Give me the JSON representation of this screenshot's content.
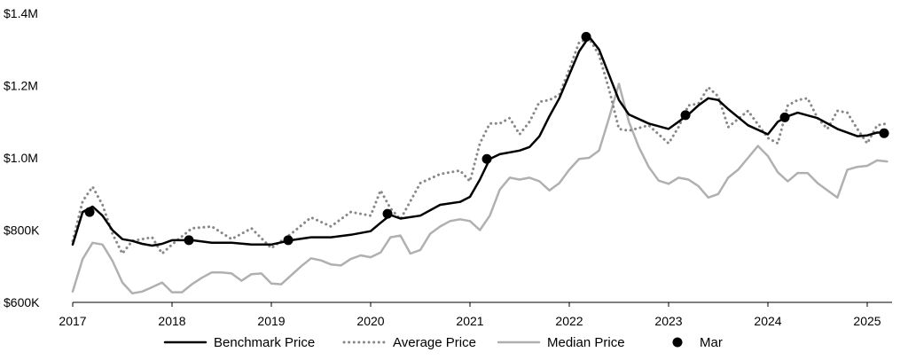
{
  "chart_data": {
    "type": "line",
    "title": "",
    "xlabel": "",
    "ylabel": "",
    "xlim": [
      2017.0,
      2025.25
    ],
    "ylim": [
      600000,
      1400000
    ],
    "grid": false,
    "legend_position": "bottom",
    "y_ticks": [
      {
        "value": 600000,
        "label": "$600K"
      },
      {
        "value": 800000,
        "label": "$800K"
      },
      {
        "value": 1000000,
        "label": "$1.0M"
      },
      {
        "value": 1200000,
        "label": "$1.2M"
      },
      {
        "value": 1400000,
        "label": "$1.4M"
      }
    ],
    "x_ticks": [
      {
        "value": 2017,
        "label": "2017"
      },
      {
        "value": 2018,
        "label": "2018"
      },
      {
        "value": 2019,
        "label": "2019"
      },
      {
        "value": 2020,
        "label": "2020"
      },
      {
        "value": 2021,
        "label": "2021"
      },
      {
        "value": 2022,
        "label": "2022"
      },
      {
        "value": 2023,
        "label": "2023"
      },
      {
        "value": 2024,
        "label": "2024"
      },
      {
        "value": 2025,
        "label": "2025"
      }
    ],
    "series": [
      {
        "name": "Benchmark Price",
        "color": "#000000",
        "style": "solid",
        "x": [
          2017.0,
          2017.1,
          2017.2,
          2017.3,
          2017.4,
          2017.5,
          2017.6,
          2017.7,
          2017.8,
          2017.9,
          2018.0,
          2018.2,
          2018.4,
          2018.6,
          2018.8,
          2019.0,
          2019.2,
          2019.4,
          2019.6,
          2019.8,
          2020.0,
          2020.1,
          2020.2,
          2020.3,
          2020.5,
          2020.7,
          2020.9,
          2021.0,
          2021.1,
          2021.2,
          2021.3,
          2021.5,
          2021.6,
          2021.7,
          2021.8,
          2021.9,
          2022.0,
          2022.1,
          2022.2,
          2022.3,
          2022.4,
          2022.5,
          2022.6,
          2022.8,
          2023.0,
          2023.1,
          2023.2,
          2023.3,
          2023.4,
          2023.5,
          2023.6,
          2023.8,
          2024.0,
          2024.1,
          2024.2,
          2024.3,
          2024.5,
          2024.7,
          2024.9,
          2025.0,
          2025.1,
          2025.2
        ],
        "y": [
          760000,
          850000,
          865000,
          840000,
          800000,
          775000,
          770000,
          762000,
          757000,
          762000,
          772000,
          772000,
          765000,
          765000,
          760000,
          760000,
          772000,
          780000,
          780000,
          787000,
          797000,
          820000,
          842000,
          832000,
          840000,
          870000,
          878000,
          892000,
          940000,
          997000,
          1010000,
          1020000,
          1030000,
          1060000,
          1115000,
          1165000,
          1230000,
          1295000,
          1335000,
          1300000,
          1230000,
          1160000,
          1120000,
          1095000,
          1080000,
          1100000,
          1120000,
          1145000,
          1165000,
          1160000,
          1135000,
          1090000,
          1065000,
          1100000,
          1115000,
          1125000,
          1110000,
          1080000,
          1060000,
          1062000,
          1070000,
          1070000
        ]
      },
      {
        "name": "Average Price",
        "color": "#888888",
        "style": "dotted",
        "x": [
          2017.0,
          2017.1,
          2017.2,
          2017.3,
          2017.4,
          2017.5,
          2017.6,
          2017.8,
          2017.9,
          2018.0,
          2018.2,
          2018.4,
          2018.6,
          2018.8,
          2019.0,
          2019.2,
          2019.4,
          2019.6,
          2019.8,
          2020.0,
          2020.1,
          2020.2,
          2020.3,
          2020.5,
          2020.7,
          2020.9,
          2021.0,
          2021.1,
          2021.2,
          2021.3,
          2021.4,
          2021.5,
          2021.6,
          2021.7,
          2021.8,
          2021.9,
          2022.0,
          2022.1,
          2022.2,
          2022.3,
          2022.4,
          2022.5,
          2022.6,
          2022.8,
          2023.0,
          2023.1,
          2023.2,
          2023.3,
          2023.4,
          2023.5,
          2023.6,
          2023.8,
          2024.0,
          2024.1,
          2024.2,
          2024.3,
          2024.4,
          2024.5,
          2024.6,
          2024.7,
          2024.8,
          2024.9,
          2025.0,
          2025.1,
          2025.2
        ],
        "y": [
          770000,
          880000,
          920000,
          870000,
          790000,
          735000,
          770000,
          780000,
          735000,
          760000,
          805000,
          810000,
          775000,
          805000,
          750000,
          790000,
          835000,
          810000,
          850000,
          840000,
          910000,
          860000,
          830000,
          930000,
          955000,
          965000,
          935000,
          1040000,
          1095000,
          1095000,
          1110000,
          1065000,
          1100000,
          1155000,
          1160000,
          1175000,
          1245000,
          1320000,
          1330000,
          1285000,
          1190000,
          1080000,
          1075000,
          1090000,
          1040000,
          1085000,
          1145000,
          1150000,
          1195000,
          1170000,
          1085000,
          1130000,
          1055000,
          1040000,
          1145000,
          1160000,
          1165000,
          1110000,
          1080000,
          1130000,
          1125000,
          1080000,
          1040000,
          1090000,
          1095000
        ]
      },
      {
        "name": "Median Price",
        "color": "#b0b0b0",
        "style": "solid",
        "x": [
          2017.0,
          2017.1,
          2017.2,
          2017.3,
          2017.4,
          2017.5,
          2017.6,
          2017.7,
          2017.8,
          2017.9,
          2018.0,
          2018.1,
          2018.2,
          2018.3,
          2018.4,
          2018.5,
          2018.6,
          2018.7,
          2018.8,
          2018.9,
          2019.0,
          2019.1,
          2019.2,
          2019.3,
          2019.4,
          2019.5,
          2019.6,
          2019.7,
          2019.8,
          2019.9,
          2020.0,
          2020.1,
          2020.2,
          2020.3,
          2020.4,
          2020.5,
          2020.6,
          2020.7,
          2020.8,
          2020.9,
          2021.0,
          2021.1,
          2021.2,
          2021.3,
          2021.4,
          2021.5,
          2021.6,
          2021.7,
          2021.8,
          2021.9,
          2022.0,
          2022.1,
          2022.2,
          2022.3,
          2022.4,
          2022.5,
          2022.6,
          2022.7,
          2022.8,
          2022.9,
          2023.0,
          2023.1,
          2023.2,
          2023.3,
          2023.4,
          2023.5,
          2023.6,
          2023.7,
          2023.8,
          2023.9,
          2024.0,
          2024.1,
          2024.2,
          2024.3,
          2024.4,
          2024.5,
          2024.6,
          2024.7,
          2024.8,
          2024.9,
          2025.0,
          2025.1,
          2025.2
        ],
        "y": [
          630000,
          720000,
          765000,
          760000,
          715000,
          655000,
          625000,
          630000,
          642000,
          655000,
          628000,
          628000,
          650000,
          668000,
          683000,
          683000,
          680000,
          660000,
          678000,
          680000,
          652000,
          650000,
          675000,
          700000,
          722000,
          716000,
          705000,
          702000,
          720000,
          730000,
          725000,
          738000,
          780000,
          785000,
          735000,
          745000,
          790000,
          810000,
          825000,
          830000,
          825000,
          800000,
          840000,
          912000,
          945000,
          940000,
          945000,
          935000,
          910000,
          930000,
          967000,
          997000,
          1000000,
          1020000,
          1110000,
          1205000,
          1100000,
          1030000,
          975000,
          937000,
          928000,
          945000,
          940000,
          922000,
          890000,
          900000,
          945000,
          967000,
          1000000,
          1033000,
          1005000,
          960000,
          935000,
          958000,
          958000,
          930000,
          910000,
          890000,
          967000,
          975000,
          978000,
          993000,
          990000
        ]
      }
    ],
    "markers": {
      "name": "Mar",
      "color": "#000000",
      "x": [
        2017.17,
        2018.17,
        2019.17,
        2020.17,
        2021.17,
        2022.17,
        2023.17,
        2024.17,
        2025.17
      ],
      "y": [
        850000,
        772000,
        772000,
        845000,
        997000,
        1335000,
        1118000,
        1112000,
        1068000
      ]
    }
  }
}
